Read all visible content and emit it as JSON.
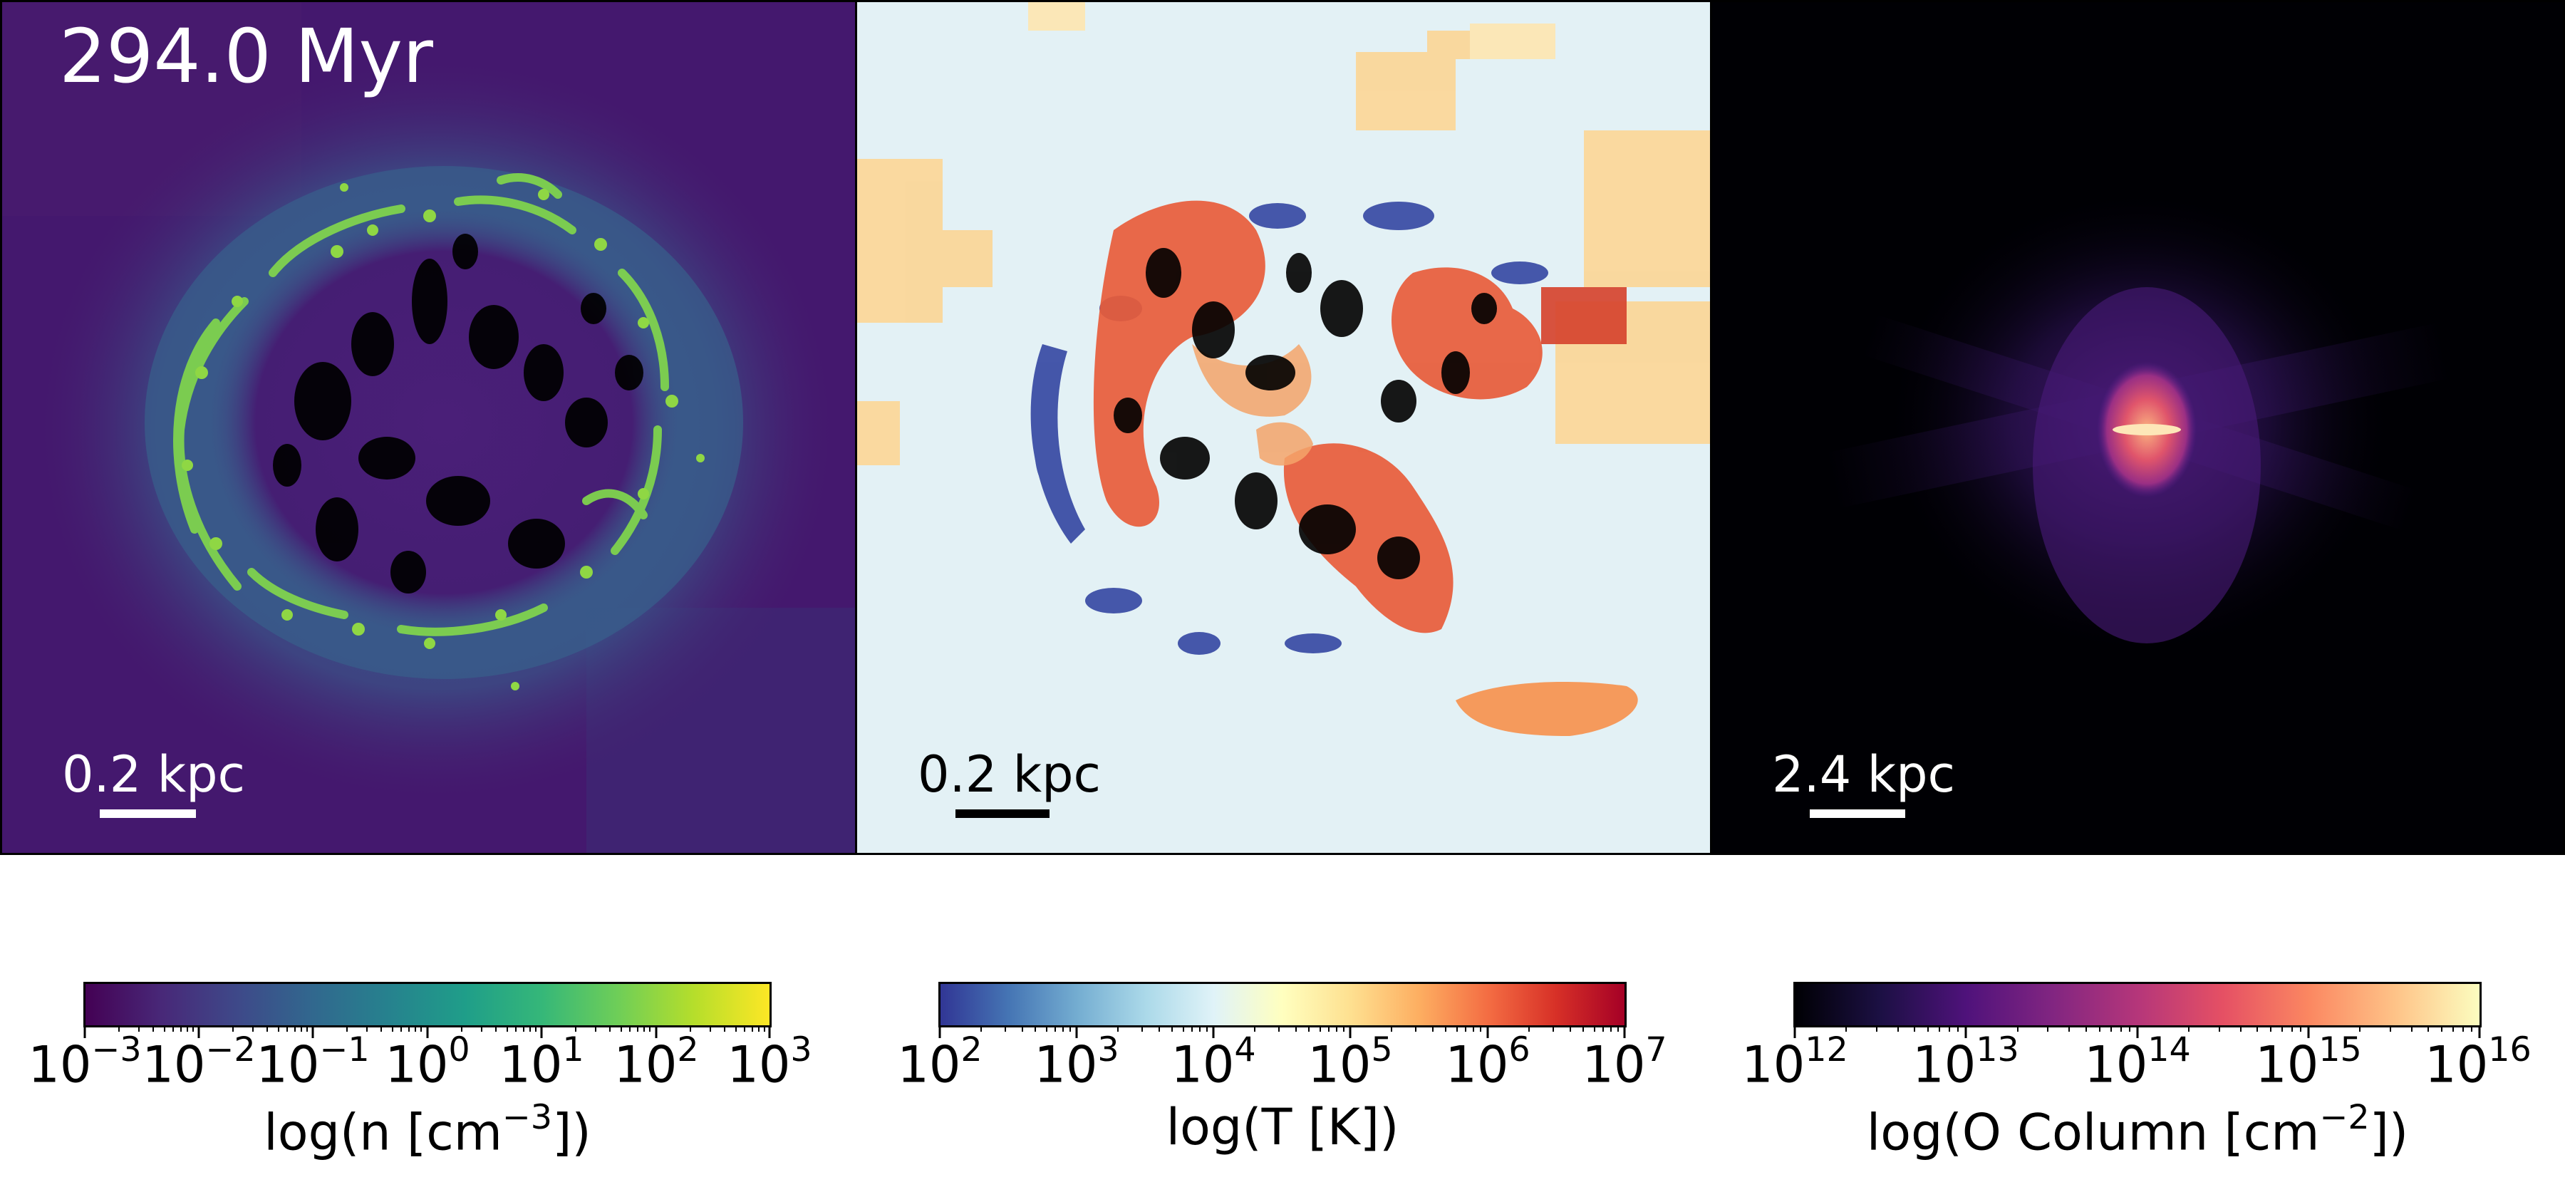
{
  "time_label": "294.0 Myr",
  "panels": [
    {
      "scale_label": "0.2 kpc",
      "label_color": "#ffffff",
      "bar_color": "#ffffff"
    },
    {
      "scale_label": "0.2 kpc",
      "label_color": "#000000",
      "bar_color": "#000000"
    },
    {
      "scale_label": "2.4 kpc",
      "label_color": "#ffffff",
      "bar_color": "#ffffff"
    }
  ],
  "colorbars": [
    {
      "quantity": "log(n [cm",
      "exponent": "−3",
      "suffix": "])",
      "colormap": "viridis",
      "tick_base": "10",
      "tick_exponents": [
        "−3",
        "−2",
        "−1",
        "0",
        "1",
        "2",
        "3"
      ]
    },
    {
      "quantity": "log(T [K])",
      "exponent": "",
      "suffix": "",
      "colormap": "RdYlBu_r",
      "tick_base": "10",
      "tick_exponents": [
        "2",
        "3",
        "4",
        "5",
        "6",
        "7"
      ]
    },
    {
      "quantity": "log(O Column [cm",
      "exponent": "−2",
      "suffix": "])",
      "colormap": "magma",
      "tick_base": "10",
      "tick_exponents": [
        "12",
        "13",
        "14",
        "15",
        "16"
      ]
    }
  ]
}
